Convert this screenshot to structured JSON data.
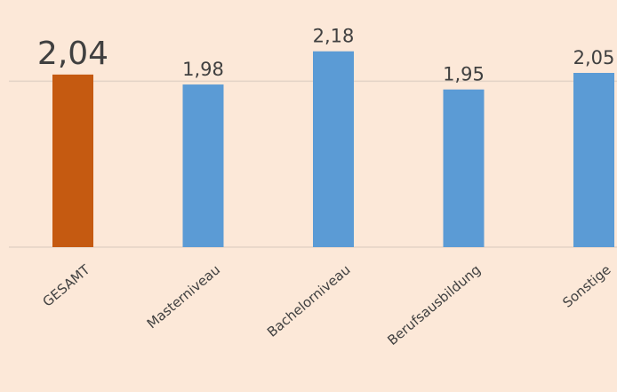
{
  "chart_data": {
    "type": "bar",
    "categories": [
      "GESAMT",
      "Masterniveau",
      "Bachelorniveau",
      "Berufsausbildung",
      "Sonstige"
    ],
    "values": [
      2.04,
      1.98,
      2.18,
      1.95,
      2.05
    ],
    "value_labels": [
      "2,04",
      "1,98",
      "2,18",
      "1,95",
      "2,05"
    ],
    "colors": [
      "#c55a11",
      "#5b9bd5",
      "#5b9bd5",
      "#5b9bd5",
      "#5b9bd5"
    ],
    "ylim": [
      1,
      2.2
    ],
    "yticks": [
      1,
      2
    ],
    "grid": true
  }
}
